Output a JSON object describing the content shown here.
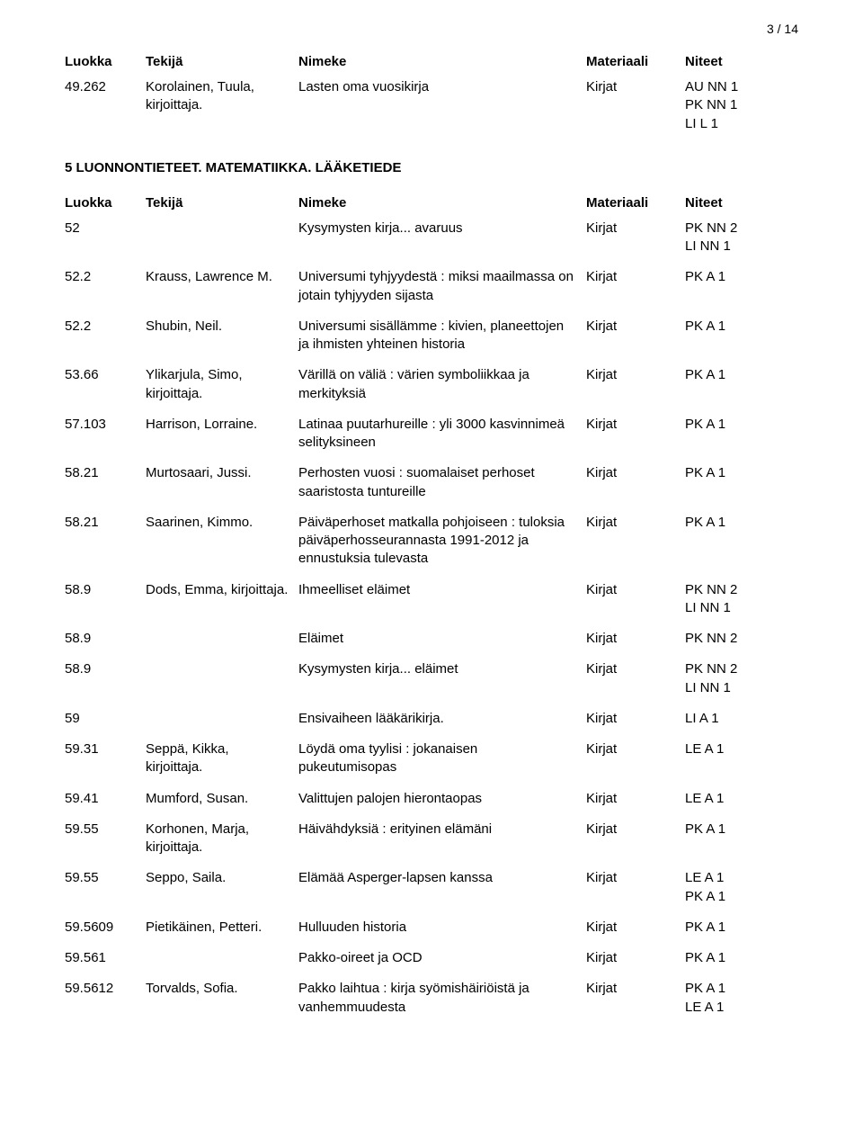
{
  "page_number": "3 / 14",
  "columns": {
    "c1": "Luokka",
    "c2": "Tekijä",
    "c3": "Nimeke",
    "c4": "Materiaali",
    "c5": "Niteet"
  },
  "top_rows": [
    {
      "c1": "49.262",
      "c2": "Korolainen, Tuula, kirjoittaja.",
      "c3": "Lasten oma vuosikirja",
      "c4": "Kirjat",
      "c5": [
        "AU NN 1",
        "PK NN 1",
        "LI L 1"
      ]
    }
  ],
  "section_title": "5 LUONNONTIETEET. MATEMATIIKKA. LÄÄKETIEDE",
  "rows": [
    {
      "c1": "52",
      "c2": "",
      "c3": "Kysymysten kirja... avaruus",
      "c4": "Kirjat",
      "c5": [
        "PK NN 2",
        "LI NN 1"
      ]
    },
    {
      "c1": "52.2",
      "c2": "Krauss, Lawrence M.",
      "c3": "Universumi tyhjyydestä : miksi maailmassa on jotain tyhjyyden sijasta",
      "c4": "Kirjat",
      "c5": [
        "PK A 1"
      ]
    },
    {
      "c1": "52.2",
      "c2": "Shubin, Neil.",
      "c3": "Universumi sisällämme : kivien, planeettojen ja ihmisten yhteinen historia",
      "c4": "Kirjat",
      "c5": [
        "PK A 1"
      ]
    },
    {
      "c1": "53.66",
      "c2": "Ylikarjula, Simo, kirjoittaja.",
      "c3": "Värillä on väliä : värien symboliikkaa ja merkityksiä",
      "c4": "Kirjat",
      "c5": [
        "PK A 1"
      ]
    },
    {
      "c1": "57.103",
      "c2": "Harrison, Lorraine.",
      "c3": "Latinaa puutarhureille : yli 3000 kasvinnimeä selityksineen",
      "c4": "Kirjat",
      "c5": [
        "PK A 1"
      ]
    },
    {
      "c1": "58.21",
      "c2": "Murtosaari, Jussi.",
      "c3": "Perhosten vuosi : suomalaiset perhoset saaristosta tuntureille",
      "c4": "Kirjat",
      "c5": [
        "PK A 1"
      ]
    },
    {
      "c1": "58.21",
      "c2": "Saarinen, Kimmo.",
      "c3": "Päiväperhoset matkalla pohjoiseen : tuloksia päiväperhosseurannasta 1991-2012 ja ennustuksia tulevasta",
      "c4": "Kirjat",
      "c5": [
        "PK A 1"
      ]
    },
    {
      "c1": "58.9",
      "c2": "Dods, Emma, kirjoittaja.",
      "c3": "Ihmeelliset eläimet",
      "c4": "Kirjat",
      "c5": [
        "PK NN 2",
        "LI NN 1"
      ]
    },
    {
      "c1": "58.9",
      "c2": "",
      "c3": "Eläimet",
      "c4": "Kirjat",
      "c5": [
        "PK NN 2"
      ]
    },
    {
      "c1": "58.9",
      "c2": "",
      "c3": "Kysymysten kirja... eläimet",
      "c4": "Kirjat",
      "c5": [
        "PK NN 2",
        "LI NN 1"
      ]
    },
    {
      "c1": "59",
      "c2": "",
      "c3": "Ensivaiheen lääkärikirja.",
      "c4": "Kirjat",
      "c5": [
        "LI A 1"
      ]
    },
    {
      "c1": "59.31",
      "c2": "Seppä, Kikka, kirjoittaja.",
      "c3": "Löydä oma tyylisi : jokanaisen pukeutumisopas",
      "c4": "Kirjat",
      "c5": [
        "LE A 1"
      ]
    },
    {
      "c1": "59.41",
      "c2": "Mumford, Susan.",
      "c3": "Valittujen palojen hierontaopas",
      "c4": "Kirjat",
      "c5": [
        "LE A 1"
      ]
    },
    {
      "c1": "59.55",
      "c2": "Korhonen, Marja, kirjoittaja.",
      "c3": "Häivähdyksiä : erityinen elämäni",
      "c4": "Kirjat",
      "c5": [
        "PK A 1"
      ]
    },
    {
      "c1": "59.55",
      "c2": "Seppo, Saila.",
      "c3": "Elämää Asperger-lapsen kanssa",
      "c4": "Kirjat",
      "c5": [
        "LE A 1",
        "PK A 1"
      ]
    },
    {
      "c1": "59.5609",
      "c2": "Pietikäinen, Petteri.",
      "c3": "Hulluuden historia",
      "c4": "Kirjat",
      "c5": [
        "PK A 1"
      ]
    },
    {
      "c1": "59.561",
      "c2": "",
      "c3": "Pakko-oireet ja OCD",
      "c4": "Kirjat",
      "c5": [
        "PK A 1"
      ]
    },
    {
      "c1": "59.5612",
      "c2": "Torvalds, Sofia.",
      "c3": "Pakko laihtua : kirja syömishäiriöistä ja vanhemmuudesta",
      "c4": "Kirjat",
      "c5": [
        "PK A 1",
        "LE A 1"
      ]
    }
  ]
}
